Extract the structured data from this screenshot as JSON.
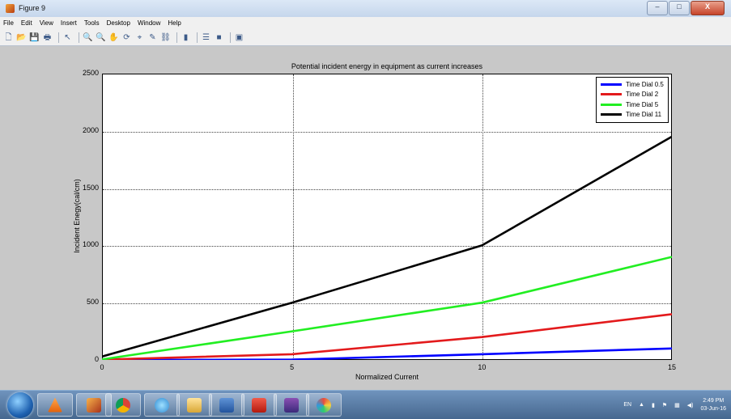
{
  "window": {
    "title": "Figure 9",
    "minimize": "–",
    "maximize": "□",
    "close": "X"
  },
  "menu": [
    "File",
    "Edit",
    "View",
    "Insert",
    "Tools",
    "Desktop",
    "Window",
    "Help"
  ],
  "toolbar_icons": [
    "new-figure-icon",
    "open-file-icon",
    "save-icon",
    "print-icon",
    "select-arrow-icon",
    "zoom-in-icon",
    "zoom-out-icon",
    "pan-icon",
    "rotate-3d-icon",
    "data-cursor-icon",
    "brush-icon",
    "link-plot-icon",
    "colorbar-icon",
    "legend-icon",
    "hide-plot-tools-icon",
    "show-plot-tools-icon"
  ],
  "toolbar_glyphs": [
    "🗋",
    "📂",
    "💾",
    "🖶",
    "↖",
    "🔍",
    "🔍",
    "✋",
    "⟳",
    "⌖",
    "✎",
    "⛓",
    "▮",
    "☰",
    "■",
    "▣"
  ],
  "chart_data": {
    "type": "line",
    "title": "Potential incident energy in equipment as current increases",
    "xlabel": "Normalized Current",
    "ylabel": "Incident Enegy(cal/cm)",
    "xlim": [
      0,
      15
    ],
    "ylim": [
      0,
      2500
    ],
    "xticks": [
      "0",
      "5",
      "10",
      "15"
    ],
    "yticks": [
      "0",
      "500",
      "1000",
      "1500",
      "2000",
      "2500"
    ],
    "x": [
      0,
      5,
      10,
      15
    ],
    "grid": true,
    "legend_position": "top-right",
    "series": [
      {
        "name": "Time Dial 0.5",
        "color": "#0000ff",
        "values": [
          0,
          3,
          50,
          100
        ]
      },
      {
        "name": "Time Dial 2",
        "color": "#e31a1c",
        "values": [
          3,
          50,
          200,
          400
        ]
      },
      {
        "name": "Time Dial 5",
        "color": "#22ee22",
        "values": [
          5,
          250,
          500,
          900
        ]
      },
      {
        "name": "Time Dial 11",
        "color": "#000000",
        "values": [
          30,
          500,
          1000,
          1950
        ]
      }
    ]
  },
  "taskbar": {
    "apps": [
      "windows-start-icon",
      "vlc-icon",
      "matlab-icon",
      "chrome-icon",
      "media-icon",
      "file-explorer-icon",
      "word-icon",
      "acrobat-icon",
      "winrar-icon",
      "paint-icon"
    ],
    "tray": {
      "language": "EN",
      "time": "2:49 PM",
      "date": "03-Jun-16"
    }
  }
}
